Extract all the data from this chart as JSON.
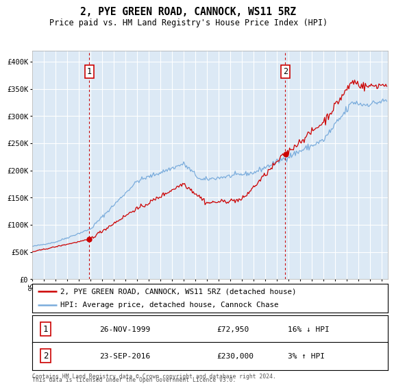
{
  "title": "2, PYE GREEN ROAD, CANNOCK, WS11 5RZ",
  "subtitle": "Price paid vs. HM Land Registry's House Price Index (HPI)",
  "hpi_label": "HPI: Average price, detached house, Cannock Chase",
  "property_label": "2, PYE GREEN ROAD, CANNOCK, WS11 5RZ (detached house)",
  "sale1_date": "26-NOV-1999",
  "sale1_price": "£72,950",
  "sale1_hpi": "16% ↓ HPI",
  "sale1_year": 1999.9,
  "sale1_value": 72950,
  "sale2_date": "23-SEP-2016",
  "sale2_price": "£230,000",
  "sale2_hpi": "3% ↑ HPI",
  "sale2_year": 2016.72,
  "sale2_value": 230000,
  "footnote1": "Contains HM Land Registry data © Crown copyright and database right 2024.",
  "footnote2": "This data is licensed under the Open Government Licence v3.0.",
  "plot_bg_color": "#dce9f5",
  "red_color": "#cc0000",
  "blue_color": "#7aacdc",
  "vline_color": "#cc0000",
  "ylim": [
    0,
    420000
  ],
  "xlim_start": 1995.0,
  "xlim_end": 2025.5,
  "yticks": [
    0,
    50000,
    100000,
    150000,
    200000,
    250000,
    300000,
    350000,
    400000
  ],
  "ylabel_fmt": [
    "£0",
    "£50K",
    "£100K",
    "£150K",
    "£200K",
    "£250K",
    "£300K",
    "£350K",
    "£400K"
  ]
}
